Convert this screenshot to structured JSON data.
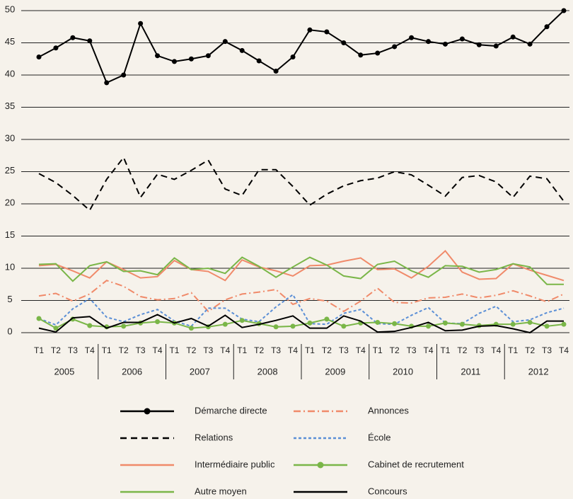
{
  "chart_data": {
    "type": "line",
    "categories": [
      "T1",
      "T2",
      "T3",
      "T4",
      "T1",
      "T2",
      "T3",
      "T4",
      "T1",
      "T2",
      "T3",
      "T4",
      "T1",
      "T2",
      "T3",
      "T4",
      "T1",
      "T2",
      "T3",
      "T4",
      "T1",
      "T2",
      "T3",
      "T4",
      "T1",
      "T2",
      "T3",
      "T4",
      "T1",
      "T2",
      "T3",
      "T4"
    ],
    "groups": [
      "2005",
      "2006",
      "2007",
      "2008",
      "2009",
      "2010",
      "2011",
      "2012"
    ],
    "ylim": [
      0,
      50
    ],
    "yticks": [
      0,
      5,
      10,
      15,
      20,
      25,
      30,
      35,
      40,
      45,
      50
    ],
    "grid": true,
    "series": [
      {
        "name": "Démarche directe",
        "color": "#000000",
        "style": "solid",
        "marker": true,
        "values": [
          42.8,
          44.2,
          45.8,
          45.3,
          38.8,
          40,
          48,
          43,
          42.1,
          42.5,
          43,
          45.2,
          43.8,
          42.2,
          40.6,
          42.8,
          47,
          46.7,
          45,
          43.1,
          43.4,
          44.4,
          45.8,
          45.2,
          44.8,
          45.6,
          44.7,
          44.5,
          45.9,
          44.8,
          47.5,
          50
        ]
      },
      {
        "name": "Annonces",
        "color": "#f08a6a",
        "style": "dashdot",
        "marker": false,
        "values": [
          5.7,
          6.1,
          4.9,
          6,
          8.1,
          7.2,
          5.6,
          5.1,
          5.3,
          6.2,
          3.3,
          5.1,
          6,
          6.3,
          6.7,
          4.4,
          5.3,
          4.9,
          3.3,
          4.9,
          6.9,
          4.7,
          4.6,
          5.4,
          5.5,
          6,
          5.4,
          5.8,
          6.5,
          5.7,
          4.8,
          6
        ]
      },
      {
        "name": "Relations",
        "color": "#000000",
        "style": "dashed",
        "marker": false,
        "values": [
          24.7,
          23.3,
          21.3,
          19,
          23.8,
          27.2,
          21,
          24.6,
          23.8,
          25.2,
          26.8,
          22.3,
          21.3,
          25.3,
          25.3,
          22.7,
          19.8,
          21.5,
          22.8,
          23.6,
          24,
          25,
          24.5,
          22.9,
          21.2,
          24.1,
          24.4,
          23.4,
          21,
          24.3,
          23.9,
          20.4
        ]
      },
      {
        "name": "École",
        "color": "#5b8fd6",
        "style": "dotted",
        "marker": false,
        "values": [
          2.2,
          1.2,
          3.7,
          5.3,
          2.4,
          1.7,
          2.8,
          3.6,
          1.8,
          1,
          3.8,
          3.8,
          2.1,
          1.7,
          4,
          5.9,
          1.4,
          1.3,
          3,
          3.6,
          1.4,
          1.3,
          2.7,
          3.9,
          1.5,
          1.4,
          3,
          4.1,
          1.7,
          2,
          3.1,
          3.8
        ]
      },
      {
        "name": "Intermédiaire public",
        "color": "#f08a6a",
        "style": "solid",
        "marker": false,
        "values": [
          10.4,
          10.6,
          9.6,
          8.5,
          11,
          9.8,
          8.5,
          8.7,
          11.2,
          9.8,
          9.5,
          8.1,
          11.3,
          10.2,
          9.6,
          8.8,
          10.4,
          10.5,
          11.1,
          11.6,
          9.8,
          9.9,
          8.5,
          10.3,
          12.7,
          9.4,
          8.3,
          8.4,
          10.7,
          9.7,
          8.9,
          8.1
        ]
      },
      {
        "name": "Cabinet de recrutement",
        "color": "#7ab648",
        "style": "solid",
        "marker": true,
        "values": [
          2.2,
          0.7,
          2.1,
          1.1,
          0.9,
          1,
          1.5,
          1.7,
          1.5,
          0.7,
          0.9,
          1.3,
          1.9,
          1.4,
          0.9,
          1,
          1.5,
          2.1,
          1,
          1.5,
          1.6,
          1.4,
          1,
          1,
          1.5,
          1.3,
          1.1,
          1.3,
          1.3,
          1.6,
          1,
          1.3
        ]
      },
      {
        "name": "Autre moyen",
        "color": "#7ab648",
        "style": "solid",
        "marker": false,
        "values": [
          10.6,
          10.7,
          8,
          10.4,
          11,
          9.5,
          9.6,
          9,
          11.6,
          9.8,
          10,
          9.2,
          11.7,
          10.3,
          8.6,
          10.2,
          11.7,
          10.5,
          8.8,
          8.4,
          10.6,
          11.1,
          9.6,
          8.6,
          10.4,
          10.3,
          9.4,
          9.8,
          10.7,
          10.2,
          7.5,
          7.5
        ]
      },
      {
        "name": "Concours",
        "color": "#000000",
        "style": "solid",
        "marker": false,
        "values": [
          0.7,
          0.1,
          2.3,
          2.5,
          0.7,
          1.6,
          1.6,
          2.8,
          1.5,
          2.2,
          1,
          2.7,
          0.8,
          1.3,
          1.9,
          2.6,
          0.7,
          0.7,
          2.6,
          1.8,
          0.1,
          0.2,
          0.8,
          1.6,
          0.3,
          0.4,
          1,
          1.1,
          0.6,
          0,
          1.8,
          1.8
        ]
      }
    ]
  }
}
